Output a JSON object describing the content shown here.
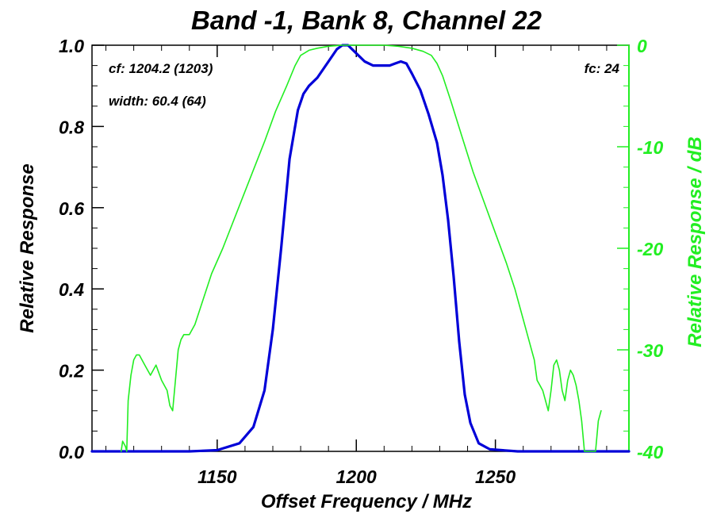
{
  "chart_data": {
    "type": "line",
    "title": "Band -1, Bank 8, Channel 22",
    "xlabel": "Offset Frequency / MHz",
    "ylabel": "Relative Response",
    "y2label": "Relative Response / dB",
    "xlim": [
      1105,
      1298
    ],
    "ylim": [
      0,
      1
    ],
    "y2lim": [
      -40,
      0
    ],
    "x_ticks": [
      1150,
      1200,
      1250
    ],
    "y_ticks": [
      "0.0",
      "0.2",
      "0.4",
      "0.6",
      "0.8",
      "1.0"
    ],
    "y2_ticks": [
      "0",
      "-10",
      "-20",
      "-30",
      "-40"
    ],
    "annotations": {
      "cf": "cf: 1204.2 (1203)",
      "width": "width: 60.4 (64)",
      "fc": "fc: 24"
    },
    "colors": {
      "linear": "#0000d8",
      "db": "#22ee22",
      "axis_right": "#22ee22",
      "axis_left": "#000000"
    },
    "series": [
      {
        "axis": "left",
        "x": [
          1105,
          1140,
          1150,
          1158,
          1163,
          1167,
          1170,
          1173,
          1176,
          1179,
          1181,
          1183,
          1186,
          1190,
          1193,
          1195,
          1197,
          1200,
          1203,
          1206,
          1209,
          1212,
          1214,
          1216,
          1218,
          1220,
          1223,
          1226,
          1229,
          1231,
          1233,
          1235,
          1237,
          1239,
          1241,
          1244,
          1248,
          1258,
          1298
        ],
        "y": [
          0.0,
          0.0,
          0.003,
          0.02,
          0.06,
          0.15,
          0.3,
          0.5,
          0.72,
          0.84,
          0.88,
          0.9,
          0.92,
          0.96,
          0.99,
          1.0,
          1.0,
          0.98,
          0.96,
          0.95,
          0.95,
          0.95,
          0.955,
          0.96,
          0.955,
          0.93,
          0.89,
          0.83,
          0.76,
          0.68,
          0.57,
          0.43,
          0.27,
          0.14,
          0.07,
          0.02,
          0.005,
          0.0,
          0.0
        ]
      },
      {
        "axis": "right",
        "x": [
          1115.5,
          1116,
          1117,
          1117.5,
          1118,
          1119,
          1120,
          1121,
          1122,
          1124,
          1126,
          1127,
          1128,
          1130,
          1132,
          1133,
          1134,
          1135,
          1136,
          1137,
          1138,
          1139,
          1140,
          1142,
          1145,
          1148,
          1152,
          1157,
          1162,
          1167,
          1171,
          1175,
          1178,
          1180,
          1183,
          1186,
          1190,
          1195,
          1200,
          1205,
          1210,
          1215,
          1220,
          1224,
          1227,
          1229,
          1231,
          1234,
          1238,
          1242,
          1246,
          1250,
          1254,
          1257,
          1260,
          1262,
          1264,
          1265,
          1266,
          1267,
          1268,
          1269,
          1270,
          1271,
          1272,
          1273,
          1274,
          1275,
          1276,
          1277,
          1278,
          1279,
          1280,
          1281,
          1282,
          1283,
          1284,
          1285,
          1286,
          1287,
          1288
        ],
        "y": [
          -40,
          -39,
          -39.5,
          -40,
          -35,
          -32.5,
          -31,
          -30.5,
          -30.5,
          -31.5,
          -32.5,
          -32,
          -31.5,
          -33,
          -34,
          -35.5,
          -36,
          -33,
          -30,
          -29,
          -28.5,
          -28.5,
          -28.5,
          -27.5,
          -25,
          -22.5,
          -20,
          -16.5,
          -13,
          -9.5,
          -6.5,
          -4,
          -2,
          -1,
          -0.5,
          -0.3,
          -0.1,
          0,
          0,
          0,
          0,
          -0.1,
          -0.3,
          -0.6,
          -1,
          -1.8,
          -3,
          -5.5,
          -9,
          -12.5,
          -15.5,
          -18.5,
          -21.5,
          -24,
          -27,
          -29,
          -31,
          -33,
          -33.5,
          -34,
          -35,
          -36,
          -34,
          -31.5,
          -31,
          -32,
          -34,
          -35,
          -33,
          -32,
          -32.5,
          -33.5,
          -35,
          -37,
          -40,
          -40,
          -40,
          -40,
          -40,
          -37,
          -36
        ]
      }
    ]
  }
}
